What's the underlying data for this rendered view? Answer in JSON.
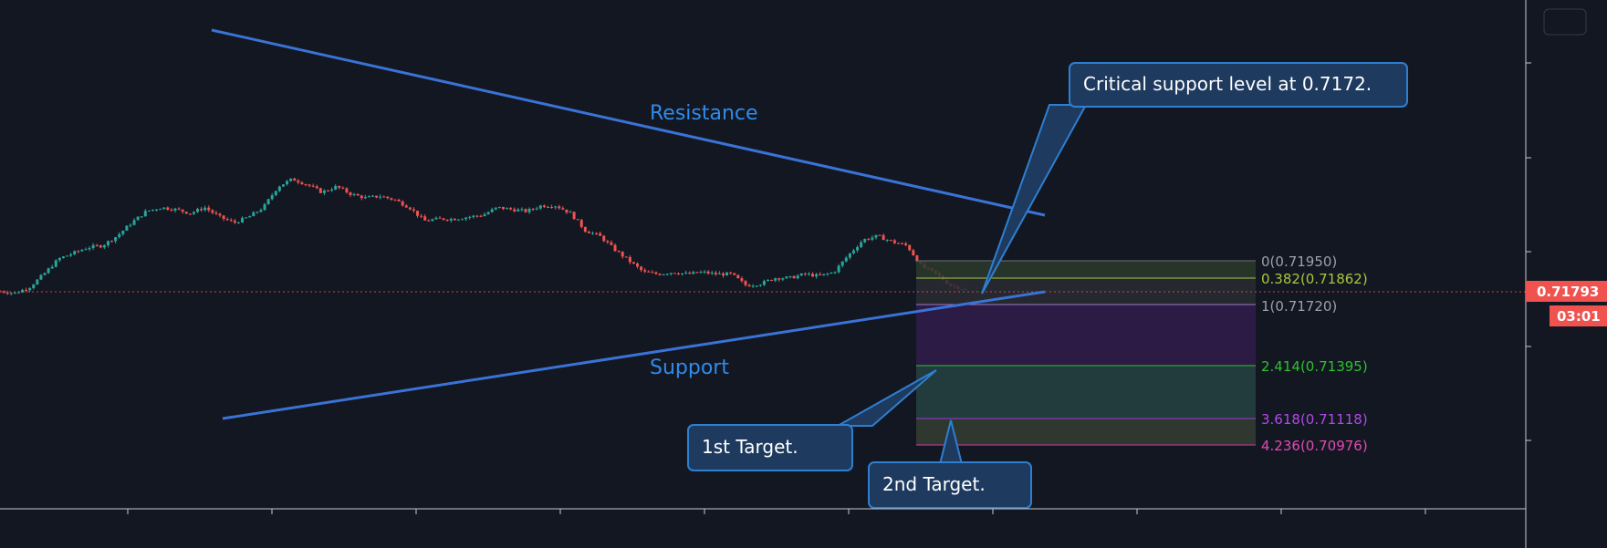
{
  "chart_data": {
    "type": "candlestick",
    "price_axis": {
      "last_price": "0.71793",
      "countdown": "03:01"
    },
    "colors": {
      "background": "#131722",
      "up": "#26a69a",
      "down": "#ef5350",
      "trendline": "#3a73d6",
      "label_blue": "#2f8bea",
      "callout_fill": "#1e3a5f",
      "callout_border": "#2f7fd1",
      "price_tag": "#f0524f"
    },
    "trendlines": [
      {
        "label": "Resistance"
      },
      {
        "label": "Support"
      }
    ],
    "fib_levels": [
      {
        "ratio": "0",
        "price": 0.7195,
        "label": "0(0.71950)",
        "color": "#9ea0a8"
      },
      {
        "ratio": "0.382",
        "price": 0.71862,
        "label": "0.382(0.71862)",
        "color": "#a8c63a"
      },
      {
        "ratio": "1",
        "price": 0.7172,
        "label": "1(0.71720)",
        "color": "#9ea0a8"
      },
      {
        "ratio": "2.414",
        "price": 0.71395,
        "label": "2.414(0.71395)",
        "color": "#2fc12f"
      },
      {
        "ratio": "3.618",
        "price": 0.71118,
        "label": "3.618(0.71118)",
        "color": "#9c3ad6"
      },
      {
        "ratio": "4.236",
        "price": 0.70976,
        "label": "4.236(0.70976)",
        "color": "#d63aa6"
      }
    ],
    "callouts": [
      {
        "text": "Critical support level at 0.7172."
      },
      {
        "text": "1st Target."
      },
      {
        "text": "2nd Target."
      }
    ],
    "price_path": [
      0.7179,
      0.7178,
      0.7181,
      0.7188,
      0.7196,
      0.7199,
      0.7202,
      0.7203,
      0.7208,
      0.7215,
      0.7221,
      0.7223,
      0.7222,
      0.722,
      0.7223,
      0.7218,
      0.7215,
      0.7218,
      0.7223,
      0.7234,
      0.7238,
      0.7235,
      0.7231,
      0.7234,
      0.723,
      0.7228,
      0.7229,
      0.7227,
      0.7223,
      0.7216,
      0.7217,
      0.7217,
      0.7218,
      0.7219,
      0.7223,
      0.7222,
      0.7221,
      0.7224,
      0.7224,
      0.722,
      0.7211,
      0.7208,
      0.7201,
      0.7195,
      0.7189,
      0.7188,
      0.7189,
      0.7188,
      0.7189,
      0.7188,
      0.7188,
      0.7182,
      0.7183,
      0.7186,
      0.7186,
      0.7188,
      0.7187,
      0.7189,
      0.7198,
      0.7206,
      0.7208,
      0.7205,
      0.7203,
      0.7192,
      0.7188,
      0.7182,
      0.718
    ]
  }
}
